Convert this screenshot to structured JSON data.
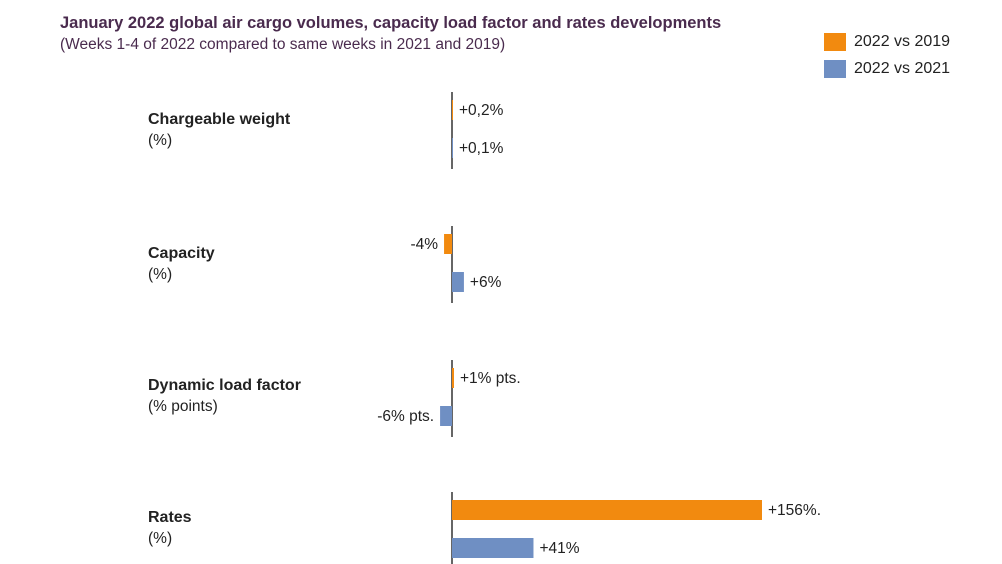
{
  "chart_data": {
    "type": "bar",
    "title": "January 2022 global air cargo volumes, capacity load factor and rates developments",
    "subtitle": "(Weeks 1-4 of 2022 compared to same weeks in 2021 and 2019)",
    "orientation": "horizontal",
    "categories": [
      {
        "label": "Chargeable weight",
        "unit": "(%)"
      },
      {
        "label": "Capacity",
        "unit": "(%)"
      },
      {
        "label": "Dynamic load factor",
        "unit": "(% points)"
      },
      {
        "label": "Rates",
        "unit": "(%)"
      }
    ],
    "series": [
      {
        "name": "2022 vs 2019",
        "color": "#f28a0f",
        "values": [
          0.2,
          -4,
          1,
          156
        ],
        "labels": [
          "+0,2%",
          "-4%",
          "+1% pts.",
          "+156%."
        ]
      },
      {
        "name": "2022 vs 2021",
        "color": "#6f8fc3",
        "values": [
          0.1,
          6,
          -6,
          41
        ],
        "labels": [
          "+0,1%",
          "+6%",
          "-6% pts.",
          "+41%"
        ]
      }
    ],
    "legend_position": "top-right",
    "grid": false
  }
}
